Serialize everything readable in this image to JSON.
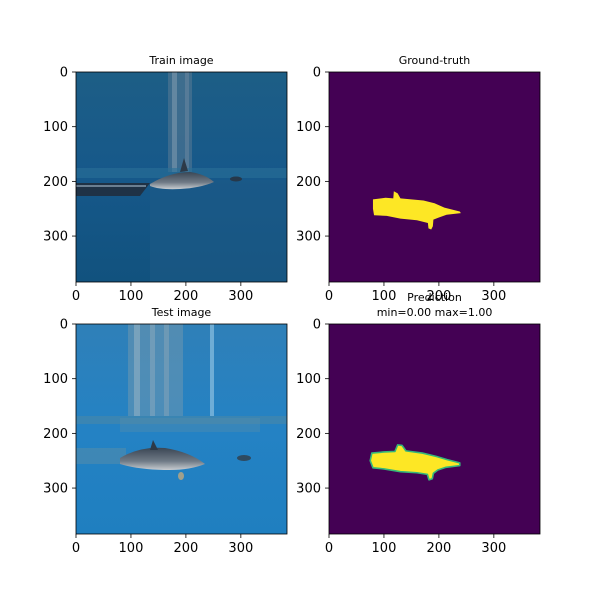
{
  "chart_data": [
    {
      "type": "image",
      "title": "Train image",
      "xticks": [
        0,
        100,
        200,
        300
      ],
      "yticks": [
        0,
        100,
        200,
        300
      ],
      "xlim": [
        0,
        384
      ],
      "ylim": [
        384,
        0
      ],
      "content": "underwater dolphin photo"
    },
    {
      "type": "heatmap",
      "title": "Ground-truth",
      "xticks": [
        0,
        100,
        200,
        300
      ],
      "yticks": [
        0,
        100,
        200,
        300
      ],
      "xlim": [
        0,
        384
      ],
      "ylim": [
        384,
        0
      ],
      "colormap": "viridis",
      "background_color": "#440154",
      "mask_color": "#fde725",
      "mask_outline_data": [
        [
          80,
          233
        ],
        [
          103,
          230
        ],
        [
          117,
          231
        ],
        [
          118,
          218
        ],
        [
          125,
          222
        ],
        [
          130,
          231
        ],
        [
          172,
          235
        ],
        [
          192,
          240
        ],
        [
          210,
          248
        ],
        [
          238,
          255
        ],
        [
          240,
          258
        ],
        [
          214,
          261
        ],
        [
          200,
          266
        ],
        [
          190,
          270
        ],
        [
          189,
          282
        ],
        [
          186,
          288
        ],
        [
          181,
          286
        ],
        [
          180,
          276
        ],
        [
          160,
          271
        ],
        [
          130,
          268
        ],
        [
          105,
          263
        ],
        [
          82,
          262
        ],
        [
          80,
          250
        ]
      ]
    },
    {
      "type": "image",
      "title": "Test image",
      "xticks": [
        0,
        100,
        200,
        300
      ],
      "yticks": [
        0,
        100,
        200,
        300
      ],
      "xlim": [
        0,
        384
      ],
      "ylim": [
        384,
        0
      ],
      "content": "underwater dolphin photo"
    },
    {
      "type": "heatmap",
      "title": "Prediction",
      "subtitle": "min=0.00 max=1.00",
      "xticks": [
        0,
        100,
        200,
        300
      ],
      "yticks": [
        0,
        100,
        200,
        300
      ],
      "xlim": [
        0,
        384
      ],
      "ylim": [
        384,
        0
      ],
      "colormap": "viridis",
      "vmin": 0.0,
      "vmax": 1.0,
      "background_color": "#440154",
      "mask_color": "#fde725",
      "edge_color": "#35b779",
      "mask_outline_data": [
        [
          78,
          236
        ],
        [
          100,
          234
        ],
        [
          120,
          233
        ],
        [
          125,
          221
        ],
        [
          133,
          222
        ],
        [
          140,
          232
        ],
        [
          170,
          236
        ],
        [
          195,
          242
        ],
        [
          215,
          248
        ],
        [
          238,
          254
        ],
        [
          238,
          259
        ],
        [
          213,
          262
        ],
        [
          198,
          267
        ],
        [
          190,
          273
        ],
        [
          188,
          283
        ],
        [
          182,
          285
        ],
        [
          179,
          275
        ],
        [
          160,
          272
        ],
        [
          130,
          270
        ],
        [
          100,
          265
        ],
        [
          80,
          263
        ],
        [
          75,
          250
        ]
      ]
    }
  ]
}
